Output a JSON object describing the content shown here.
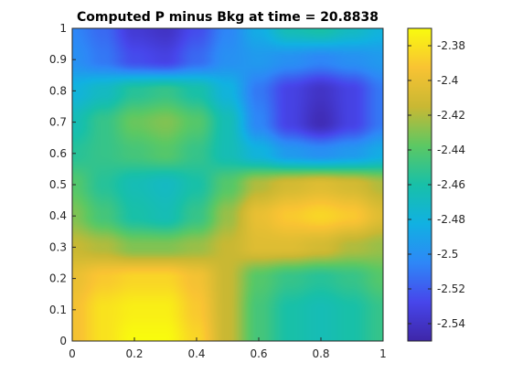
{
  "chart_data": {
    "type": "heatmap",
    "title": "Computed P minus Bkg at time = 20.8838",
    "xlabel": "",
    "ylabel": "",
    "xlim": [
      0,
      1
    ],
    "ylim": [
      0,
      1
    ],
    "x_ticks": [
      "0",
      "0.2",
      "0.4",
      "0.6",
      "0.8",
      "1"
    ],
    "y_ticks": [
      "0",
      "0.1",
      "0.2",
      "0.3",
      "0.4",
      "0.5",
      "0.6",
      "0.7",
      "0.8",
      "0.9",
      "1"
    ],
    "colormap": "parula",
    "colorbar": {
      "range": [
        -2.55,
        -2.37
      ],
      "ticks": [
        "-2.38",
        "-2.4",
        "-2.42",
        "-2.44",
        "-2.46",
        "-2.48",
        "-2.5",
        "-2.52",
        "-2.54"
      ]
    },
    "grid": false,
    "field": {
      "note_x": "columns sampled at x = 0, 0.1, ..., 1",
      "note_y": "rows sampled at y = 1.0 (top) down to 0.0",
      "x": [
        0,
        0.1,
        0.2,
        0.3,
        0.4,
        0.5,
        0.6,
        0.7,
        0.8,
        0.9,
        1.0
      ],
      "y": [
        1.0,
        0.9,
        0.8,
        0.7,
        0.6,
        0.5,
        0.4,
        0.3,
        0.2,
        0.1,
        0.0
      ],
      "values": [
        [
          -2.505,
          -2.515,
          -2.535,
          -2.54,
          -2.525,
          -2.505,
          -2.485,
          -2.465,
          -2.46,
          -2.47,
          -2.48
        ],
        [
          -2.5,
          -2.51,
          -2.525,
          -2.53,
          -2.515,
          -2.5,
          -2.495,
          -2.5,
          -2.505,
          -2.5,
          -2.495
        ],
        [
          -2.48,
          -2.47,
          -2.455,
          -2.45,
          -2.46,
          -2.48,
          -2.51,
          -2.53,
          -2.54,
          -2.53,
          -2.51
        ],
        [
          -2.465,
          -2.45,
          -2.435,
          -2.43,
          -2.44,
          -2.465,
          -2.505,
          -2.53,
          -2.545,
          -2.53,
          -2.51
        ],
        [
          -2.455,
          -2.45,
          -2.445,
          -2.44,
          -2.45,
          -2.465,
          -2.48,
          -2.495,
          -2.5,
          -2.495,
          -2.485
        ],
        [
          -2.44,
          -2.455,
          -2.465,
          -2.47,
          -2.46,
          -2.44,
          -2.42,
          -2.41,
          -2.405,
          -2.41,
          -2.42
        ],
        [
          -2.43,
          -2.445,
          -2.46,
          -2.465,
          -2.45,
          -2.425,
          -2.4,
          -2.39,
          -2.385,
          -2.39,
          -2.405
        ],
        [
          -2.415,
          -2.42,
          -2.43,
          -2.43,
          -2.425,
          -2.415,
          -2.405,
          -2.405,
          -2.41,
          -2.42,
          -2.425
        ],
        [
          -2.4,
          -2.39,
          -2.385,
          -2.385,
          -2.395,
          -2.415,
          -2.44,
          -2.45,
          -2.455,
          -2.45,
          -2.44
        ],
        [
          -2.395,
          -2.38,
          -2.375,
          -2.375,
          -2.39,
          -2.415,
          -2.445,
          -2.46,
          -2.465,
          -2.46,
          -2.45
        ],
        [
          -2.395,
          -2.38,
          -2.37,
          -2.37,
          -2.385,
          -2.415,
          -2.445,
          -2.46,
          -2.465,
          -2.46,
          -2.45
        ]
      ]
    }
  }
}
